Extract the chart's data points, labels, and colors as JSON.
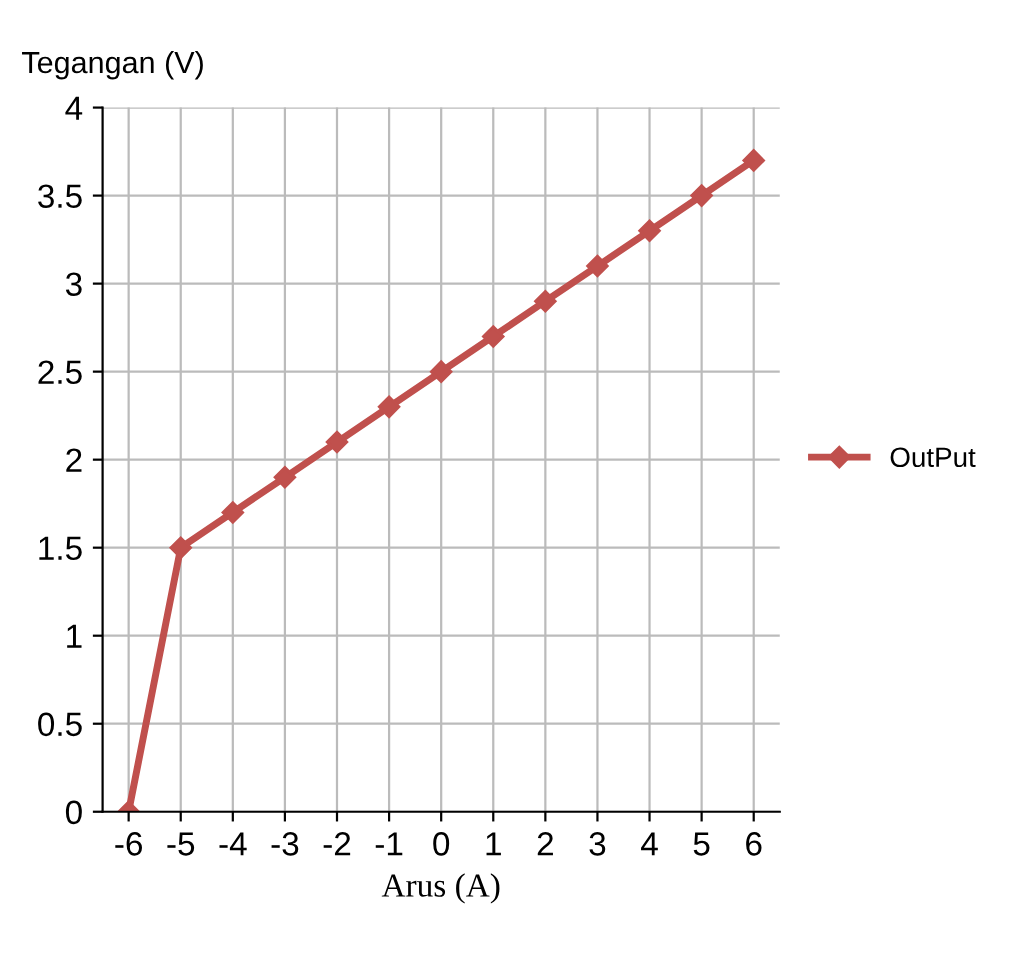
{
  "chart_data": {
    "type": "line",
    "ylabel": "Tegangan (V)",
    "xlabel": "Arus (A)",
    "categories": [
      "-6",
      "-5",
      "-4",
      "-3",
      "-2",
      "-1",
      "0",
      "1",
      "2",
      "3",
      "4",
      "5",
      "6"
    ],
    "series": [
      {
        "name": "OutPut",
        "color": "#c0504d",
        "values": [
          0,
          1.5,
          1.7,
          1.9,
          2.1,
          2.3,
          2.5,
          2.7,
          2.9,
          3.1,
          3.3,
          3.5,
          3.7
        ]
      }
    ],
    "ylim": [
      0,
      4
    ],
    "yticks": [
      0,
      0.5,
      1,
      1.5,
      2,
      2.5,
      3,
      3.5,
      4
    ],
    "grid": true,
    "legend": "right",
    "marker": "diamond",
    "line_style": "solid"
  }
}
